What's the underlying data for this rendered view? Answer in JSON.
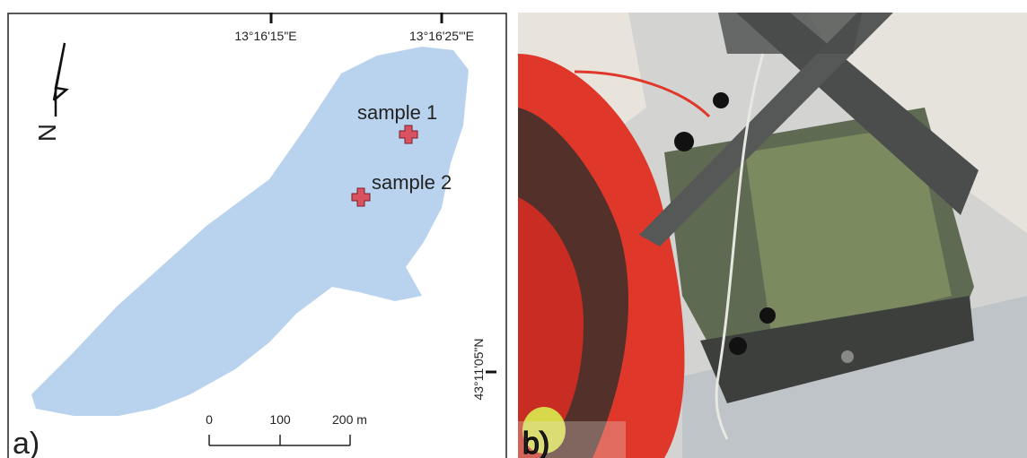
{
  "panel_a": {
    "label": "a)",
    "north_label": "N",
    "longitude_labels": [
      "13°16'15\"E",
      "13°16'25'\"E"
    ],
    "latitude_labels": [
      "43°11'05\"N"
    ],
    "samples": [
      "sample 1",
      "sample 2"
    ],
    "scale_labels": [
      "0",
      "100",
      "200 m"
    ]
  },
  "panel_b": {
    "label": "b)"
  }
}
